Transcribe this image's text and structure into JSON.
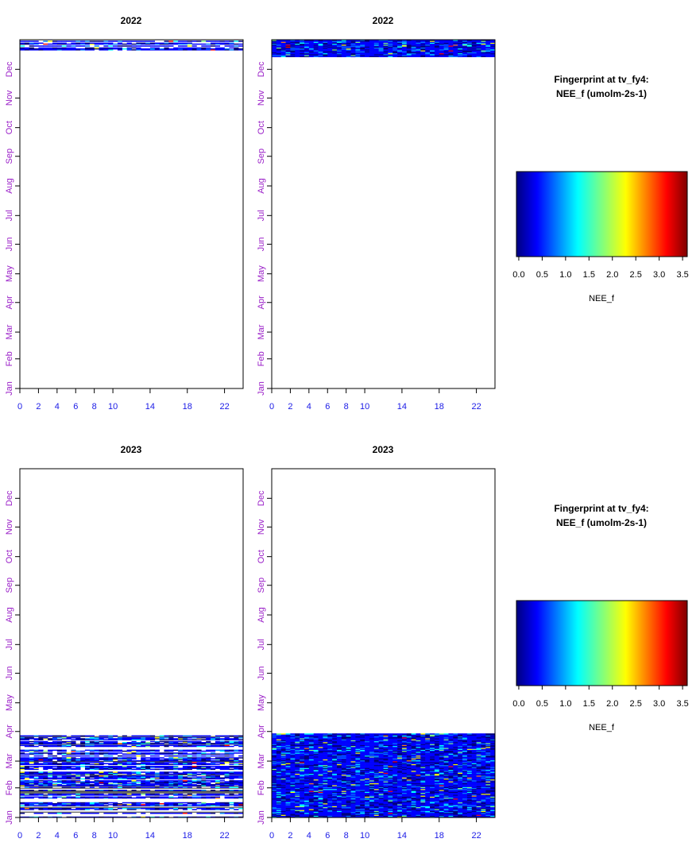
{
  "chart_data": [
    {
      "type": "heatmap",
      "title": "2022",
      "xticks": [
        "0",
        "2",
        "4",
        "6",
        "8",
        "10",
        "14",
        "18",
        "22"
      ],
      "yticks": [
        "Jan",
        "Feb",
        "Mar",
        "Apr",
        "May",
        "Jun",
        "Jul",
        "Aug",
        "Sep",
        "Oct",
        "Nov",
        "Dec"
      ],
      "xlim": [
        0,
        24
      ],
      "variant": "gapped",
      "data_coverage_doy": [
        [
          355,
          365
        ]
      ]
    },
    {
      "type": "heatmap",
      "title": "2022",
      "xticks": [
        "0",
        "2",
        "4",
        "6",
        "8",
        "10",
        "14",
        "18",
        "22"
      ],
      "yticks": [
        "Jan",
        "Feb",
        "Mar",
        "Apr",
        "May",
        "Jun",
        "Jul",
        "Aug",
        "Sep",
        "Oct",
        "Nov",
        "Dec"
      ],
      "xlim": [
        0,
        24
      ],
      "variant": "filled",
      "data_coverage_doy": [
        [
          348,
          365
        ]
      ]
    },
    {
      "type": "heatmap",
      "title": "2023",
      "xticks": [
        "0",
        "2",
        "4",
        "6",
        "8",
        "10",
        "14",
        "18",
        "22"
      ],
      "yticks": [
        "Jan",
        "Feb",
        "Mar",
        "Apr",
        "May",
        "Jun",
        "Jul",
        "Aug",
        "Sep",
        "Oct",
        "Nov",
        "Dec"
      ],
      "xlim": [
        0,
        24
      ],
      "variant": "gapped",
      "data_coverage_doy": [
        [
          1,
          86
        ]
      ]
    },
    {
      "type": "heatmap",
      "title": "2023",
      "xticks": [
        "0",
        "2",
        "4",
        "6",
        "8",
        "10",
        "14",
        "18",
        "22"
      ],
      "yticks": [
        "Jan",
        "Feb",
        "Mar",
        "Apr",
        "May",
        "Jun",
        "Jul",
        "Aug",
        "Sep",
        "Oct",
        "Nov",
        "Dec"
      ],
      "xlim": [
        0,
        24
      ],
      "variant": "filled",
      "data_coverage_doy": [
        [
          1,
          88
        ]
      ]
    }
  ],
  "colorbars": [
    {
      "title_line1": "Fingerprint at tv_fy4:",
      "title_line2": "NEE_f (umolm-2s-1)",
      "label": "NEE_f",
      "ticks": [
        "0.0",
        "0.5",
        "1.0",
        "1.5",
        "2.0",
        "2.5",
        "3.0",
        "3.5"
      ],
      "range": [
        -0.05,
        3.6
      ]
    },
    {
      "title_line1": "Fingerprint at tv_fy4:",
      "title_line2": "NEE_f (umolm-2s-1)",
      "label": "NEE_f",
      "ticks": [
        "0.0",
        "0.5",
        "1.0",
        "1.5",
        "2.0",
        "2.5",
        "3.0",
        "3.5"
      ],
      "range": [
        -0.05,
        3.6
      ]
    }
  ],
  "colors": {
    "palette": [
      "#00007f",
      "#0000ff",
      "#007fff",
      "#00ffff",
      "#7fff7f",
      "#ffff00",
      "#ff7f00",
      "#ff0000",
      "#7f0000"
    ],
    "ytick": "#9a1fc8",
    "xtick": "#1a1ae6"
  }
}
